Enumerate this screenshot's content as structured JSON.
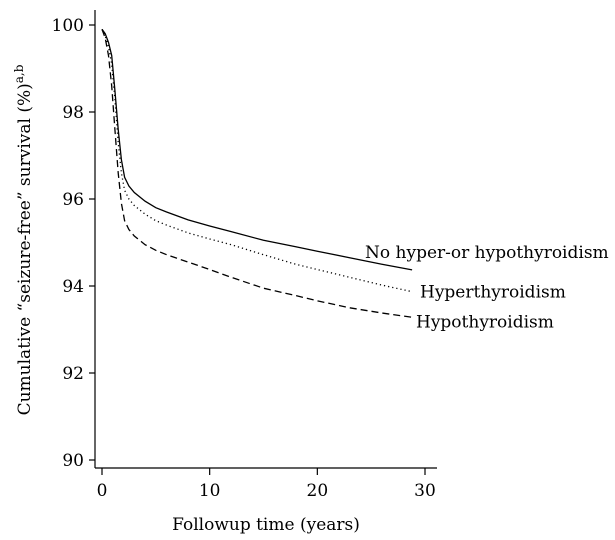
{
  "chart_data": {
    "type": "line",
    "xlabel": "Followup time (years)",
    "ylabel": "Cumulative “seizure-free” survival (%)",
    "ylabel_superscript": "a,b",
    "xlim": [
      0,
      30
    ],
    "ylim": [
      90,
      100
    ],
    "xticks": [
      0,
      10,
      20,
      30
    ],
    "yticks": [
      90,
      92,
      94,
      96,
      98,
      100
    ],
    "grid": false,
    "legend": "direct labels at line ends",
    "series": [
      {
        "name": "No hyper-or hypothyroidism",
        "style": "solid",
        "x": [
          0,
          0.3,
          0.6,
          0.9,
          1.2,
          1.5,
          1.8,
          2.1,
          2.5,
          3,
          4,
          5,
          6,
          8,
          10,
          12,
          15,
          18,
          20,
          23,
          26,
          28.8
        ],
        "y": [
          99.9,
          99.8,
          99.6,
          99.3,
          98.5,
          97.6,
          96.9,
          96.5,
          96.3,
          96.15,
          95.95,
          95.8,
          95.7,
          95.52,
          95.38,
          95.25,
          95.05,
          94.9,
          94.8,
          94.65,
          94.5,
          94.37
        ]
      },
      {
        "name": "Hyperthyroidism",
        "style": "dotted",
        "x": [
          0,
          0.3,
          0.6,
          0.9,
          1.2,
          1.5,
          1.8,
          2.1,
          2.5,
          3,
          4,
          5,
          6,
          8,
          10,
          12,
          15,
          18,
          20,
          23,
          26,
          28.8
        ],
        "y": [
          99.9,
          99.75,
          99.5,
          99.1,
          98.3,
          97.3,
          96.6,
          96.2,
          96.0,
          95.85,
          95.65,
          95.5,
          95.4,
          95.22,
          95.08,
          94.95,
          94.72,
          94.5,
          94.38,
          94.2,
          94.02,
          93.87
        ]
      },
      {
        "name": "Hypothyroidism",
        "style": "dashed",
        "x": [
          0,
          0.3,
          0.6,
          0.9,
          1.2,
          1.5,
          1.8,
          2.1,
          2.5,
          3,
          4,
          5,
          6,
          8,
          10,
          12,
          15,
          18,
          20,
          23,
          26,
          28.8
        ],
        "y": [
          99.9,
          99.7,
          99.3,
          98.6,
          97.6,
          96.6,
          95.9,
          95.5,
          95.3,
          95.15,
          94.95,
          94.82,
          94.72,
          94.55,
          94.38,
          94.2,
          93.95,
          93.78,
          93.66,
          93.5,
          93.38,
          93.28
        ]
      }
    ]
  }
}
